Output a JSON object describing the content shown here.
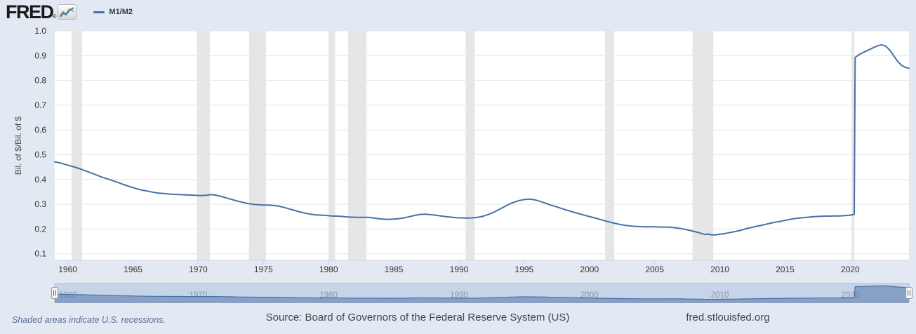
{
  "header": {
    "logo_text": "FRED",
    "registered_mark": "®",
    "legend": {
      "label": "M1/M2"
    }
  },
  "chart_data": {
    "type": "line",
    "ylabel": "Bil. of $/Bil. of $",
    "x_ticks": [
      1960,
      1965,
      1970,
      1975,
      1980,
      1985,
      1990,
      1995,
      2000,
      2005,
      2010,
      2015,
      2020
    ],
    "y_ticks": [
      0.1,
      0.2,
      0.3,
      0.4,
      0.5,
      0.6,
      0.7,
      0.8,
      0.9,
      1.0
    ],
    "xlim": [
      1959,
      2024.5
    ],
    "ylim": [
      0.074,
      1.0
    ],
    "grid": "horizontal",
    "legend_position": "top-left",
    "recessions": [
      [
        1960.3,
        1961.1
      ],
      [
        1969.9,
        1970.9
      ],
      [
        1973.9,
        1975.2
      ],
      [
        1980.0,
        1980.5
      ],
      [
        1981.5,
        1982.9
      ],
      [
        1990.5,
        1991.2
      ],
      [
        2001.2,
        2001.9
      ],
      [
        2007.9,
        2009.5
      ],
      [
        2020.1,
        2020.3
      ]
    ],
    "navigator_decades": [
      1960,
      1970,
      1980,
      1990,
      2000,
      2010,
      2020
    ],
    "series": [
      {
        "name": "M1/M2",
        "color": "#4572a7",
        "points": [
          [
            1959,
            0.471
          ],
          [
            1959.4,
            0.467
          ],
          [
            1959.8,
            0.461
          ],
          [
            1960.2,
            0.455
          ],
          [
            1960.6,
            0.449
          ],
          [
            1961,
            0.442
          ],
          [
            1961.4,
            0.434
          ],
          [
            1961.8,
            0.426
          ],
          [
            1962.2,
            0.418
          ],
          [
            1962.6,
            0.41
          ],
          [
            1963,
            0.403
          ],
          [
            1963.4,
            0.396
          ],
          [
            1963.8,
            0.389
          ],
          [
            1964.2,
            0.381
          ],
          [
            1964.6,
            0.374
          ],
          [
            1965,
            0.367
          ],
          [
            1965.4,
            0.361
          ],
          [
            1965.8,
            0.356
          ],
          [
            1966.2,
            0.352
          ],
          [
            1966.6,
            0.348
          ],
          [
            1967,
            0.345
          ],
          [
            1967.4,
            0.343
          ],
          [
            1967.8,
            0.341
          ],
          [
            1968.2,
            0.34
          ],
          [
            1968.6,
            0.339
          ],
          [
            1969,
            0.338
          ],
          [
            1969.4,
            0.337
          ],
          [
            1969.8,
            0.336
          ],
          [
            1970.2,
            0.335
          ],
          [
            1970.6,
            0.336
          ],
          [
            1971,
            0.339
          ],
          [
            1971.4,
            0.336
          ],
          [
            1971.8,
            0.331
          ],
          [
            1972.2,
            0.325
          ],
          [
            1972.6,
            0.319
          ],
          [
            1973,
            0.313
          ],
          [
            1973.4,
            0.308
          ],
          [
            1973.8,
            0.303
          ],
          [
            1974.2,
            0.3
          ],
          [
            1974.6,
            0.298
          ],
          [
            1975,
            0.297
          ],
          [
            1975.4,
            0.297
          ],
          [
            1975.8,
            0.295
          ],
          [
            1976.2,
            0.292
          ],
          [
            1976.6,
            0.287
          ],
          [
            1977,
            0.281
          ],
          [
            1977.4,
            0.275
          ],
          [
            1977.8,
            0.269
          ],
          [
            1978.2,
            0.264
          ],
          [
            1978.6,
            0.26
          ],
          [
            1979,
            0.257
          ],
          [
            1979.4,
            0.256
          ],
          [
            1979.8,
            0.255
          ],
          [
            1980.2,
            0.253
          ],
          [
            1980.6,
            0.252
          ],
          [
            1981,
            0.251
          ],
          [
            1981.4,
            0.249
          ],
          [
            1981.8,
            0.248
          ],
          [
            1982.2,
            0.247
          ],
          [
            1982.6,
            0.247
          ],
          [
            1983,
            0.247
          ],
          [
            1983.4,
            0.245
          ],
          [
            1983.8,
            0.242
          ],
          [
            1984.2,
            0.24
          ],
          [
            1984.6,
            0.239
          ],
          [
            1985,
            0.24
          ],
          [
            1985.4,
            0.242
          ],
          [
            1985.8,
            0.245
          ],
          [
            1986.2,
            0.25
          ],
          [
            1986.6,
            0.255
          ],
          [
            1987,
            0.259
          ],
          [
            1987.4,
            0.26
          ],
          [
            1987.8,
            0.258
          ],
          [
            1988.2,
            0.256
          ],
          [
            1988.6,
            0.253
          ],
          [
            1989,
            0.25
          ],
          [
            1989.4,
            0.248
          ],
          [
            1989.8,
            0.246
          ],
          [
            1990.2,
            0.245
          ],
          [
            1990.6,
            0.244
          ],
          [
            1991,
            0.245
          ],
          [
            1991.4,
            0.247
          ],
          [
            1991.8,
            0.251
          ],
          [
            1992.2,
            0.258
          ],
          [
            1992.6,
            0.266
          ],
          [
            1993,
            0.277
          ],
          [
            1993.4,
            0.288
          ],
          [
            1993.8,
            0.299
          ],
          [
            1994.2,
            0.308
          ],
          [
            1994.6,
            0.315
          ],
          [
            1995,
            0.319
          ],
          [
            1995.4,
            0.321
          ],
          [
            1995.8,
            0.318
          ],
          [
            1996.2,
            0.312
          ],
          [
            1996.6,
            0.305
          ],
          [
            1997,
            0.297
          ],
          [
            1997.4,
            0.291
          ],
          [
            1997.8,
            0.284
          ],
          [
            1998.2,
            0.277
          ],
          [
            1998.6,
            0.271
          ],
          [
            1999,
            0.265
          ],
          [
            1999.4,
            0.259
          ],
          [
            1999.8,
            0.253
          ],
          [
            2000.2,
            0.248
          ],
          [
            2000.6,
            0.242
          ],
          [
            2001,
            0.236
          ],
          [
            2001.4,
            0.23
          ],
          [
            2001.8,
            0.225
          ],
          [
            2002.2,
            0.22
          ],
          [
            2002.6,
            0.216
          ],
          [
            2003,
            0.213
          ],
          [
            2003.4,
            0.211
          ],
          [
            2003.8,
            0.21
          ],
          [
            2004.2,
            0.209
          ],
          [
            2004.6,
            0.209
          ],
          [
            2005,
            0.209
          ],
          [
            2005.4,
            0.208
          ],
          [
            2005.8,
            0.208
          ],
          [
            2006.2,
            0.207
          ],
          [
            2006.6,
            0.205
          ],
          [
            2007,
            0.202
          ],
          [
            2007.4,
            0.198
          ],
          [
            2007.8,
            0.193
          ],
          [
            2008.2,
            0.188
          ],
          [
            2008.6,
            0.182
          ],
          [
            2008.9,
            0.178
          ],
          [
            2009.1,
            0.18
          ],
          [
            2009.3,
            0.177
          ],
          [
            2009.6,
            0.176
          ],
          [
            2010,
            0.179
          ],
          [
            2010.4,
            0.182
          ],
          [
            2010.8,
            0.186
          ],
          [
            2011.2,
            0.19
          ],
          [
            2011.6,
            0.195
          ],
          [
            2012,
            0.201
          ],
          [
            2012.4,
            0.206
          ],
          [
            2012.8,
            0.211
          ],
          [
            2013.2,
            0.215
          ],
          [
            2013.6,
            0.22
          ],
          [
            2014,
            0.225
          ],
          [
            2014.4,
            0.229
          ],
          [
            2014.8,
            0.233
          ],
          [
            2015.2,
            0.237
          ],
          [
            2015.6,
            0.241
          ],
          [
            2016,
            0.244
          ],
          [
            2016.4,
            0.246
          ],
          [
            2016.8,
            0.248
          ],
          [
            2017.2,
            0.25
          ],
          [
            2017.6,
            0.251
          ],
          [
            2018,
            0.252
          ],
          [
            2018.4,
            0.252
          ],
          [
            2018.8,
            0.253
          ],
          [
            2019.2,
            0.253
          ],
          [
            2019.6,
            0.254
          ],
          [
            2020,
            0.256
          ],
          [
            2020.3,
            0.259
          ],
          [
            2020.37,
            0.893
          ],
          [
            2020.7,
            0.905
          ],
          [
            2021,
            0.913
          ],
          [
            2021.4,
            0.923
          ],
          [
            2021.8,
            0.933
          ],
          [
            2022.1,
            0.94
          ],
          [
            2022.4,
            0.944
          ],
          [
            2022.7,
            0.939
          ],
          [
            2023,
            0.924
          ],
          [
            2023.3,
            0.902
          ],
          [
            2023.6,
            0.879
          ],
          [
            2023.9,
            0.862
          ],
          [
            2024.2,
            0.853
          ],
          [
            2024.5,
            0.849
          ]
        ]
      }
    ]
  },
  "footer": {
    "recession_note": "Shaded areas indicate U.S. recessions.",
    "source": "Source: Board of Governors of the Federal Reserve System (US)",
    "url": "fred.stlouisfed.org"
  },
  "colors": {
    "page_bg": "#e2e9f2",
    "plot_bg": "#ffffff",
    "grid": "#e6e6e6",
    "recession_band": "#e6e6e6",
    "series": "#4572a7",
    "axis_line": "#ccd6eb",
    "tick_label": "#333333",
    "axis_title": "#4d4d4d",
    "nav_track": "#c7d3e8",
    "nav_border": "#aebdd6",
    "nav_bottom_border": "#7f93b6",
    "nav_area": "rgba(69,114,167,0.5)",
    "nav_line": "#4a72a4",
    "nav_label": "#8d96a5",
    "handle_fill": "#f4f4f4",
    "handle_stroke": "#999999",
    "handle_ridge": "#666666"
  }
}
